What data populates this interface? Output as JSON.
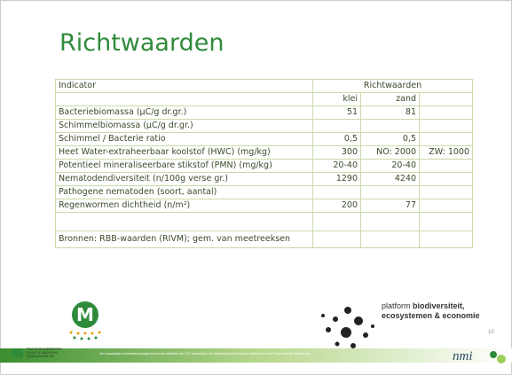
{
  "title": "Richtwaarden",
  "table": {
    "header": {
      "indicator": "Indicator",
      "group": "Richtwaarden",
      "klei": "klei",
      "zand": "zand"
    },
    "rows": [
      {
        "indicator": "Bacteriebiomassa (µC/g dr.gr.)",
        "klei": "51",
        "zand": "81"
      },
      {
        "indicator": "Schimmelbiomassa (µC/g dr.gr.)"
      },
      {
        "indicator": "Schimmel / Bacterie ratio",
        "klei": "0,5",
        "zand": "0,5"
      },
      {
        "indicator": "Heet Water-extraheerbaar koolstof (HWC) (mg/kg)",
        "klei": "300",
        "zand": "NO: 2000",
        "extra": "ZW: 1000"
      },
      {
        "indicator": "Potentieel mineraliseerbare stikstof (PMN) (mg/kg)",
        "klei": "20-40",
        "zand": "20-40"
      },
      {
        "indicator": "Nematodendiversiteit (n/100g verse gr.)",
        "klei": "1290",
        "zand": "4240"
      },
      {
        "indicator": "Pathogene nematoden (soort, aantal)"
      },
      {
        "indicator": "Regenwormen dichtheid (n/m²)",
        "klei": "200",
        "zand": "77"
      },
      {}
    ],
    "source": "Bronnen: RBB-waarden (RIVM); gem. van meetreeksen"
  },
  "footer": {
    "text": "Het masterplan mineralenmanagement is een initiatief van LTO Nederland, de Nederlandse Akkerbouw Vakbond en het Productschap Akkerbouw.",
    "platform_line1": "platform",
    "platform_bold1": "biodiversiteit,",
    "platform_line2": "ecosystemen & economie",
    "ppo_line1": "PRAKTIJKONDERZOEK",
    "ppo_line2": "PLANT & OMGEVING",
    "ppo_line3": "WAGENINGEN UR",
    "nmi": "nmi",
    "page": "10"
  }
}
